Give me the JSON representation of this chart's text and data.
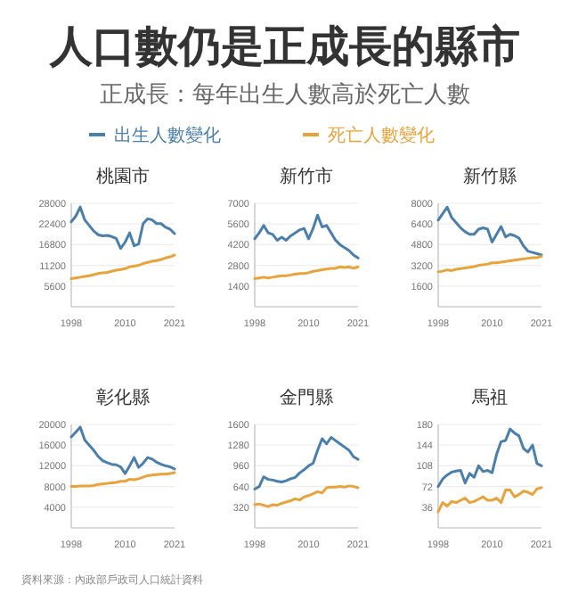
{
  "chart_data": [
    {
      "type": "other",
      "title": "人口數仍是正成長的縣市",
      "subtitle": "正成長：每年出生人數高於死亡人數",
      "annotations": [
        "資料來源：內政部戶政司人口統計資料"
      ]
    },
    {
      "type": "line",
      "title": "桃園市",
      "x": [
        "1998",
        "1999",
        "2000",
        "2001",
        "2002",
        "2003",
        "2004",
        "2005",
        "2006",
        "2007",
        "2008",
        "2009",
        "2010",
        "2011",
        "2012",
        "2013",
        "2014",
        "2015",
        "2016",
        "2017",
        "2018",
        "2019",
        "2020",
        "2021"
      ],
      "xlim": [
        "1998",
        "2021"
      ],
      "xticks": [
        {
          "value": "1998",
          "label": "1998"
        },
        {
          "value": "2010",
          "label": "2010"
        },
        {
          "value": "2021",
          "label": "2021"
        }
      ],
      "ylim": [
        0,
        28000
      ],
      "yticks": [
        5600,
        11200,
        16800,
        22400,
        28000
      ],
      "grid": "y",
      "legend": "top",
      "series": [
        {
          "name": "出生人數變化",
          "color": "#4a7fab",
          "values": [
            23000,
            24500,
            27000,
            23500,
            22000,
            20500,
            19500,
            19200,
            19300,
            19000,
            18500,
            15800,
            17500,
            20000,
            16500,
            17000,
            22500,
            23800,
            23500,
            22500,
            22500,
            21500,
            21000,
            19800
          ]
        },
        {
          "name": "死亡人數變化",
          "color": "#e8a33a",
          "values": [
            7600,
            7800,
            8000,
            8200,
            8400,
            8700,
            9000,
            9200,
            9300,
            9600,
            9900,
            10100,
            10300,
            10800,
            11000,
            11200,
            11700,
            12000,
            12300,
            12500,
            12800,
            13200,
            13500,
            14000
          ]
        }
      ]
    },
    {
      "type": "line",
      "title": "新竹市",
      "x": [
        "1998",
        "1999",
        "2000",
        "2001",
        "2002",
        "2003",
        "2004",
        "2005",
        "2006",
        "2007",
        "2008",
        "2009",
        "2010",
        "2011",
        "2012",
        "2013",
        "2014",
        "2015",
        "2016",
        "2017",
        "2018",
        "2019",
        "2020",
        "2021"
      ],
      "xlim": [
        "1998",
        "2021"
      ],
      "xticks": [
        {
          "value": "1998",
          "label": "1998"
        },
        {
          "value": "2010",
          "label": "2010"
        },
        {
          "value": "2021",
          "label": "2021"
        }
      ],
      "ylim": [
        0,
        7000
      ],
      "yticks": [
        1400,
        2800,
        4200,
        5600,
        7000
      ],
      "grid": "y",
      "series": [
        {
          "color": "#4a7fab",
          "values": [
            4600,
            5000,
            5500,
            5000,
            4900,
            4500,
            4700,
            4500,
            4800,
            5000,
            5200,
            5300,
            4600,
            5300,
            6200,
            5400,
            5500,
            5000,
            4500,
            4200,
            4000,
            3800,
            3500,
            3300
          ]
        },
        {
          "color": "#e8a33a",
          "values": [
            1900,
            1950,
            2000,
            1950,
            2000,
            2050,
            2100,
            2100,
            2150,
            2200,
            2250,
            2250,
            2300,
            2400,
            2450,
            2500,
            2550,
            2600,
            2600,
            2700,
            2650,
            2700,
            2600,
            2700
          ]
        }
      ]
    },
    {
      "type": "line",
      "title": "新竹縣",
      "x": [
        "1998",
        "1999",
        "2000",
        "2001",
        "2002",
        "2003",
        "2004",
        "2005",
        "2006",
        "2007",
        "2008",
        "2009",
        "2010",
        "2011",
        "2012",
        "2013",
        "2014",
        "2015",
        "2016",
        "2017",
        "2018",
        "2019",
        "2020",
        "2021"
      ],
      "xlim": [
        "1998",
        "2021"
      ],
      "xticks": [
        {
          "value": "1998",
          "label": "1998"
        },
        {
          "value": "2010",
          "label": "2010"
        },
        {
          "value": "2021",
          "label": "2021"
        }
      ],
      "ylim": [
        0,
        8000
      ],
      "yticks": [
        1600,
        3200,
        4800,
        6400,
        8000
      ],
      "grid": "y",
      "series": [
        {
          "color": "#4a7fab",
          "values": [
            6700,
            7200,
            7700,
            6900,
            6500,
            6100,
            5800,
            5600,
            5600,
            6000,
            6100,
            6000,
            5000,
            5600,
            6200,
            5400,
            5600,
            5500,
            5300,
            4700,
            4300,
            4200,
            4100,
            4000
          ]
        },
        {
          "color": "#e8a33a",
          "values": [
            2700,
            2750,
            2850,
            2800,
            2900,
            2950,
            3000,
            3050,
            3100,
            3200,
            3250,
            3300,
            3400,
            3400,
            3450,
            3500,
            3550,
            3600,
            3650,
            3700,
            3750,
            3800,
            3800,
            3900
          ]
        }
      ]
    },
    {
      "type": "line",
      "title": "彰化縣",
      "x": [
        "1998",
        "1999",
        "2000",
        "2001",
        "2002",
        "2003",
        "2004",
        "2005",
        "2006",
        "2007",
        "2008",
        "2009",
        "2010",
        "2011",
        "2012",
        "2013",
        "2014",
        "2015",
        "2016",
        "2017",
        "2018",
        "2019",
        "2020",
        "2021"
      ],
      "xlim": [
        "1998",
        "2021"
      ],
      "xticks": [
        {
          "value": "1998",
          "label": "1998"
        },
        {
          "value": "2010",
          "label": "2010"
        },
        {
          "value": "2021",
          "label": "2021"
        }
      ],
      "ylim": [
        0,
        20000
      ],
      "yticks": [
        4000,
        8000,
        12000,
        16000,
        20000
      ],
      "grid": "y",
      "series": [
        {
          "color": "#4a7fab",
          "values": [
            17600,
            18500,
            19500,
            17000,
            16000,
            15000,
            13800,
            13000,
            12600,
            12300,
            12200,
            11800,
            10500,
            12000,
            13600,
            11700,
            12500,
            13600,
            13300,
            12700,
            12300,
            12000,
            11800,
            11400
          ]
        },
        {
          "color": "#e8a33a",
          "values": [
            8000,
            8000,
            8100,
            8100,
            8100,
            8200,
            8400,
            8500,
            8600,
            8700,
            8800,
            9000,
            9000,
            9400,
            9300,
            9500,
            9800,
            10100,
            10200,
            10300,
            10400,
            10400,
            10500,
            10700
          ]
        }
      ]
    },
    {
      "type": "line",
      "title": "金門縣",
      "x": [
        "1998",
        "1999",
        "2000",
        "2001",
        "2002",
        "2003",
        "2004",
        "2005",
        "2006",
        "2007",
        "2008",
        "2009",
        "2010",
        "2011",
        "2012",
        "2013",
        "2014",
        "2015",
        "2016",
        "2017",
        "2018",
        "2019",
        "2020",
        "2021"
      ],
      "xlim": [
        "1998",
        "2021"
      ],
      "xticks": [
        {
          "value": "1998",
          "label": "1998"
        },
        {
          "value": "2010",
          "label": "2010"
        },
        {
          "value": "2021",
          "label": "2021"
        }
      ],
      "ylim": [
        0,
        1600
      ],
      "yticks": [
        320,
        640,
        960,
        1280,
        1600
      ],
      "grid": "y",
      "series": [
        {
          "color": "#4a7fab",
          "values": [
            600,
            640,
            790,
            750,
            740,
            720,
            710,
            730,
            760,
            780,
            850,
            900,
            960,
            1000,
            1200,
            1380,
            1300,
            1400,
            1350,
            1300,
            1250,
            1200,
            1100,
            1060
          ]
        },
        {
          "color": "#e8a33a",
          "values": [
            360,
            370,
            350,
            330,
            360,
            350,
            380,
            400,
            420,
            450,
            430,
            480,
            500,
            530,
            560,
            540,
            620,
            630,
            630,
            640,
            630,
            650,
            640,
            620
          ]
        }
      ]
    },
    {
      "type": "line",
      "title": "馬祖",
      "x": [
        "1998",
        "1999",
        "2000",
        "2001",
        "2002",
        "2003",
        "2004",
        "2005",
        "2006",
        "2007",
        "2008",
        "2009",
        "2010",
        "2011",
        "2012",
        "2013",
        "2014",
        "2015",
        "2016",
        "2017",
        "2018",
        "2019",
        "2020",
        "2021"
      ],
      "xlim": [
        "1998",
        "2021"
      ],
      "xticks": [
        {
          "value": "1998",
          "label": "1998"
        },
        {
          "value": "2010",
          "label": "2010"
        },
        {
          "value": "2021",
          "label": "2021"
        }
      ],
      "ylim": [
        0,
        180
      ],
      "yticks": [
        36,
        72,
        108,
        144,
        180
      ],
      "grid": "y",
      "series": [
        {
          "color": "#4a7fab",
          "values": [
            72,
            85,
            92,
            97,
            99,
            100,
            78,
            95,
            88,
            108,
            98,
            100,
            96,
            128,
            150,
            152,
            172,
            165,
            160,
            138,
            132,
            144,
            112,
            108
          ]
        },
        {
          "color": "#e8a33a",
          "values": [
            28,
            44,
            38,
            46,
            44,
            48,
            52,
            44,
            46,
            50,
            54,
            48,
            48,
            52,
            44,
            66,
            66,
            54,
            58,
            64,
            62,
            58,
            68,
            70
          ]
        }
      ]
    }
  ]
}
